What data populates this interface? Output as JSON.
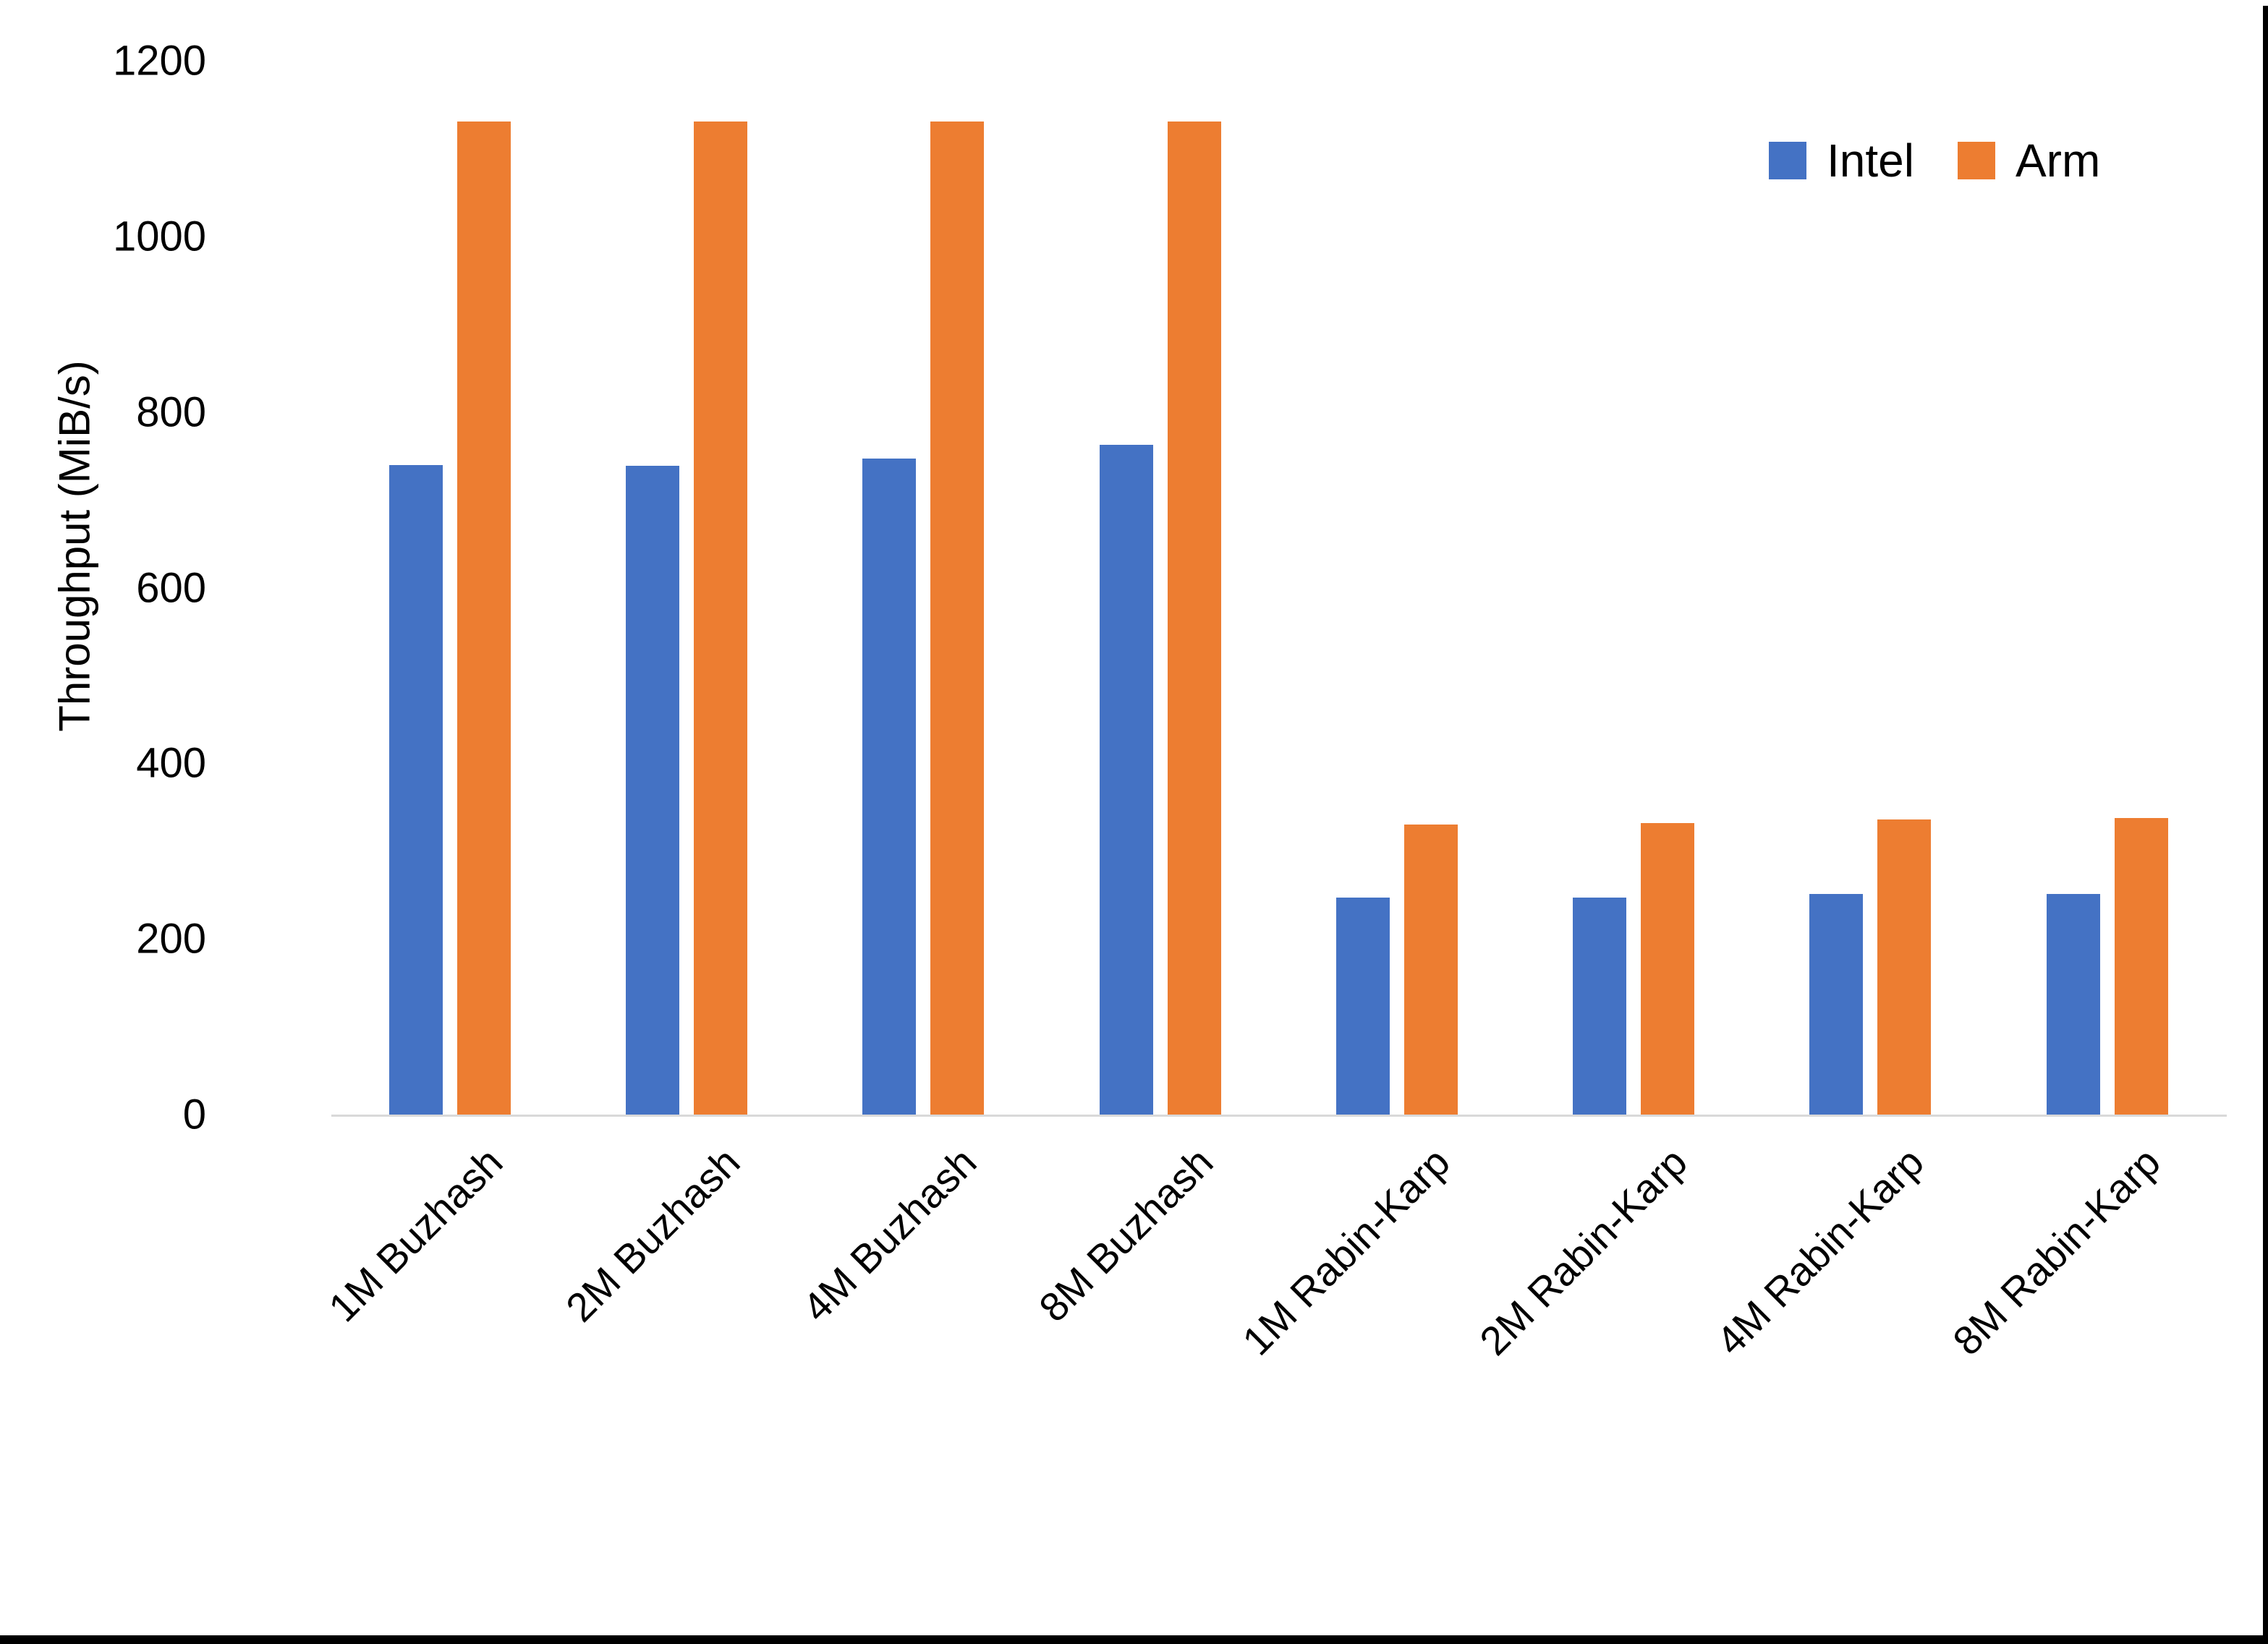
{
  "y_axis": {
    "title": "Throughput (MiB/s)",
    "ticks": [
      0,
      200,
      400,
      600,
      800,
      1000,
      1200
    ],
    "min": 0,
    "max": 1200
  },
  "legend": {
    "items": [
      {
        "label": "Intel",
        "color": "#4472C4"
      },
      {
        "label": "Arm",
        "color": "#ED7D31"
      }
    ],
    "position": "top-right"
  },
  "colors": {
    "intel": "#4472C4",
    "arm": "#ED7D31",
    "axis_line": "#d9d9d9",
    "text": "#000000",
    "frame_edge": "#000000",
    "background": "#ffffff"
  },
  "chart_data": {
    "type": "bar",
    "title": "",
    "xlabel": "",
    "ylabel": "Throughput (MiB/s)",
    "ylim": [
      0,
      1200
    ],
    "grid": false,
    "legend_position": "top-right",
    "categories": [
      "1M Buzhash",
      "2M Buzhash",
      "4M Buzhash",
      "8M Buzhash",
      "1M Rabin-Karp",
      "2M Rabin-Karp",
      "4M Rabin-Karp",
      "8M Rabin-Karp"
    ],
    "series": [
      {
        "name": "Intel",
        "color": "#4472C4",
        "values": [
          740,
          739,
          747,
          763,
          247,
          247,
          251,
          251
        ]
      },
      {
        "name": "Arm",
        "color": "#ED7D31",
        "values": [
          1131,
          1131,
          1131,
          1131,
          330,
          332,
          336,
          338
        ]
      }
    ]
  },
  "layout_note_values_unit": "MiB/s"
}
